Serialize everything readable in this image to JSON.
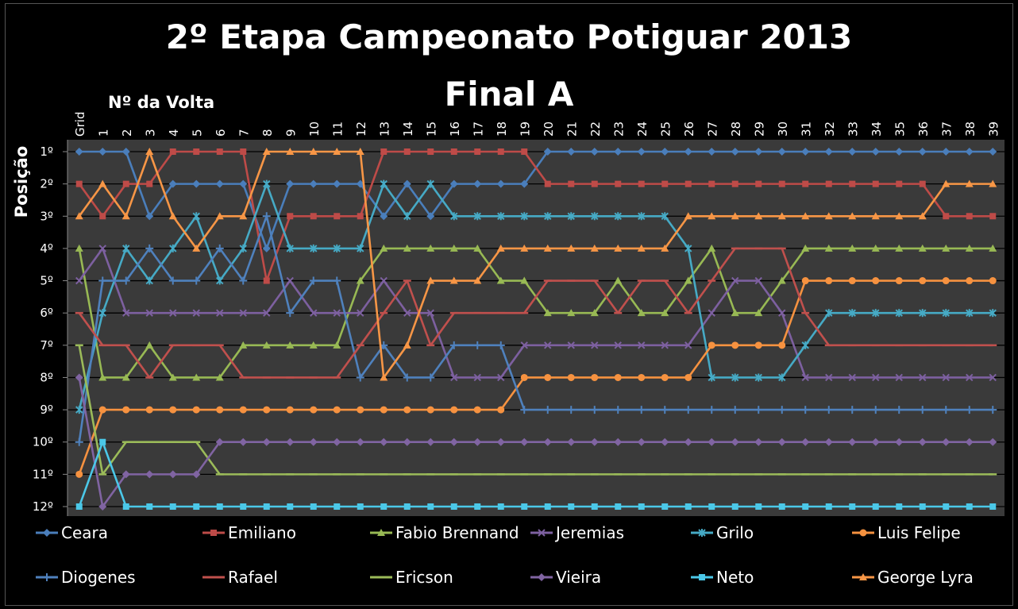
{
  "chart_data": {
    "type": "line",
    "title": "2º Etapa Campeonato Potiguar 2013",
    "subtitle": "Final A",
    "xlabel": "Nº da Volta",
    "ylabel": "Posição",
    "categories": [
      "Grid",
      "1",
      "2",
      "3",
      "4",
      "5",
      "6",
      "7",
      "8",
      "9",
      "10",
      "11",
      "12",
      "13",
      "14",
      "15",
      "16",
      "17",
      "18",
      "19",
      "20",
      "21",
      "22",
      "23",
      "24",
      "25",
      "26",
      "27",
      "28",
      "29",
      "30",
      "31",
      "32",
      "33",
      "34",
      "35",
      "36",
      "37",
      "38",
      "39"
    ],
    "y_tick_labels": [
      "1º",
      "2º",
      "3º",
      "4º",
      "5º",
      "6º",
      "7º",
      "8º",
      "9º",
      "10º",
      "11º",
      "12º"
    ],
    "ylim": [
      1,
      12
    ],
    "y_inverted": true,
    "grid": true,
    "legend_position": "bottom",
    "series": [
      {
        "name": "Ceara",
        "color": "#4A7EBB",
        "marker": "diamond",
        "values": [
          1,
          1,
          1,
          3,
          2,
          2,
          2,
          2,
          4,
          2,
          2,
          2,
          2,
          3,
          2,
          3,
          2,
          2,
          2,
          2,
          1,
          1,
          1,
          1,
          1,
          1,
          1,
          1,
          1,
          1,
          1,
          1,
          1,
          1,
          1,
          1,
          1,
          1,
          1,
          1
        ]
      },
      {
        "name": "Emiliano",
        "color": "#BE4B48",
        "marker": "square",
        "values": [
          2,
          3,
          2,
          2,
          1,
          1,
          1,
          1,
          5,
          3,
          3,
          3,
          3,
          1,
          1,
          1,
          1,
          1,
          1,
          1,
          2,
          2,
          2,
          2,
          2,
          2,
          2,
          2,
          2,
          2,
          2,
          2,
          2,
          2,
          2,
          2,
          2,
          3,
          3,
          3
        ]
      },
      {
        "name": "Fabio Brennand",
        "color": "#98B954",
        "marker": "triangle",
        "values": [
          4,
          8,
          8,
          7,
          8,
          8,
          8,
          7,
          7,
          7,
          7,
          7,
          5,
          4,
          4,
          4,
          4,
          4,
          5,
          5,
          6,
          6,
          6,
          5,
          6,
          6,
          5,
          4,
          6,
          6,
          5,
          4,
          4,
          4,
          4,
          4,
          4,
          4,
          4,
          4
        ]
      },
      {
        "name": "Jeremias",
        "color": "#7D60A0",
        "marker": "x",
        "values": [
          5,
          4,
          6,
          6,
          6,
          6,
          6,
          6,
          6,
          5,
          6,
          6,
          6,
          5,
          6,
          6,
          8,
          8,
          8,
          7,
          7,
          7,
          7,
          7,
          7,
          7,
          7,
          6,
          5,
          5,
          6,
          8,
          8,
          8,
          8,
          8,
          8,
          8,
          8,
          8
        ]
      },
      {
        "name": "Grilo",
        "color": "#46AAC5",
        "marker": "star",
        "values": [
          9,
          6,
          4,
          5,
          4,
          3,
          5,
          4,
          2,
          4,
          4,
          4,
          4,
          2,
          3,
          2,
          3,
          3,
          3,
          3,
          3,
          3,
          3,
          3,
          3,
          3,
          4,
          8,
          8,
          8,
          8,
          7,
          6,
          6,
          6,
          6,
          6,
          6,
          6,
          6
        ]
      },
      {
        "name": "Luis Felipe",
        "color": "#F69240",
        "marker": "circle",
        "values": [
          11,
          9,
          9,
          9,
          9,
          9,
          9,
          9,
          9,
          9,
          9,
          9,
          9,
          9,
          9,
          9,
          9,
          9,
          9,
          8,
          8,
          8,
          8,
          8,
          8,
          8,
          8,
          7,
          7,
          7,
          7,
          5,
          5,
          5,
          5,
          5,
          5,
          5,
          5,
          5
        ]
      },
      {
        "name": "Diogenes",
        "color": "#4F81BD",
        "marker": "plus",
        "values": [
          10,
          5,
          5,
          4,
          5,
          5,
          4,
          5,
          3,
          6,
          5,
          5,
          8,
          7,
          8,
          8,
          7,
          7,
          7,
          9,
          9,
          9,
          9,
          9,
          9,
          9,
          9,
          9,
          9,
          9,
          9,
          9,
          9,
          9,
          9,
          9,
          9,
          9,
          9,
          9
        ]
      },
      {
        "name": "Rafael",
        "color": "#C0504D",
        "marker": "dash",
        "values": [
          6,
          7,
          7,
          8,
          7,
          7,
          7,
          8,
          8,
          8,
          8,
          8,
          7,
          6,
          5,
          7,
          6,
          6,
          6,
          6,
          5,
          5,
          5,
          6,
          5,
          5,
          6,
          5,
          4,
          4,
          4,
          6,
          7,
          7,
          7,
          7,
          7,
          7,
          7,
          7
        ]
      },
      {
        "name": "Ericson",
        "color": "#9BBB59",
        "marker": "dash",
        "values": [
          7,
          11,
          10,
          10,
          10,
          10,
          11,
          11,
          11,
          11,
          11,
          11,
          11,
          11,
          11,
          11,
          11,
          11,
          11,
          11,
          11,
          11,
          11,
          11,
          11,
          11,
          11,
          11,
          11,
          11,
          11,
          11,
          11,
          11,
          11,
          11,
          11,
          11,
          11,
          11
        ]
      },
      {
        "name": "Vieira",
        "color": "#8064A2",
        "marker": "diamond",
        "values": [
          8,
          12,
          11,
          11,
          11,
          11,
          10,
          10,
          10,
          10,
          10,
          10,
          10,
          10,
          10,
          10,
          10,
          10,
          10,
          10,
          10,
          10,
          10,
          10,
          10,
          10,
          10,
          10,
          10,
          10,
          10,
          10,
          10,
          10,
          10,
          10,
          10,
          10,
          10,
          10
        ]
      },
      {
        "name": "Neto",
        "color": "#4BC8E8",
        "marker": "square",
        "values": [
          12,
          10,
          12,
          12,
          12,
          12,
          12,
          12,
          12,
          12,
          12,
          12,
          12,
          12,
          12,
          12,
          12,
          12,
          12,
          12,
          12,
          12,
          12,
          12,
          12,
          12,
          12,
          12,
          12,
          12,
          12,
          12,
          12,
          12,
          12,
          12,
          12,
          12,
          12,
          12
        ]
      },
      {
        "name": "George Lyra",
        "color": "#F79646",
        "marker": "triangle",
        "values": [
          3,
          2,
          3,
          1,
          3,
          4,
          3,
          3,
          1,
          1,
          1,
          1,
          1,
          8,
          7,
          5,
          5,
          5,
          4,
          4,
          4,
          4,
          4,
          4,
          4,
          4,
          3,
          3,
          3,
          3,
          3,
          3,
          3,
          3,
          3,
          3,
          3,
          2,
          2,
          2
        ]
      }
    ]
  }
}
